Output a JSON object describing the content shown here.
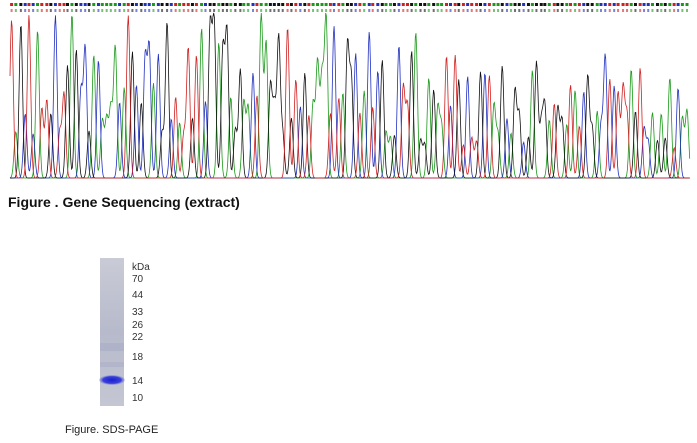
{
  "sequencing": {
    "caption": "Figure . Gene Sequencing (extract)"
  },
  "gel": {
    "unit": "kDa",
    "markers": [
      "70",
      "44",
      "33",
      "26",
      "22",
      "18",
      "14",
      "10"
    ],
    "caption": "Figure. SDS-PAGE"
  }
}
